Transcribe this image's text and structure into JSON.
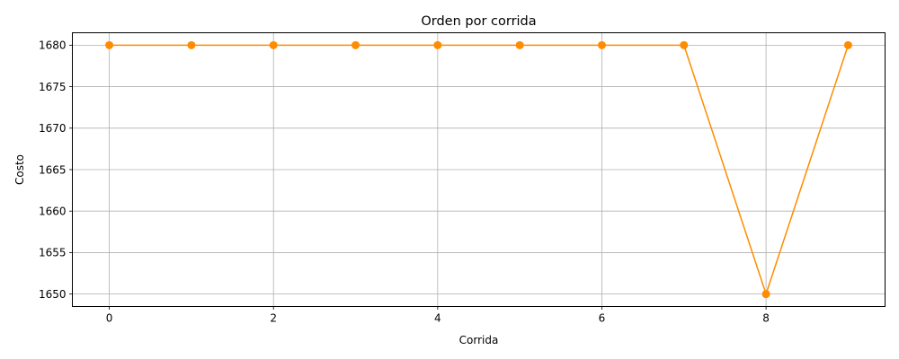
{
  "chart_data": {
    "type": "line",
    "title": "Orden por corrida",
    "xlabel": "Corrida",
    "ylabel": "Costo",
    "x": [
      0,
      1,
      2,
      3,
      4,
      5,
      6,
      7,
      8,
      9
    ],
    "series": [
      {
        "values": [
          1680,
          1680,
          1680,
          1680,
          1680,
          1680,
          1680,
          1680,
          1650,
          1680
        ]
      }
    ],
    "xlim": [
      -0.45,
      9.45
    ],
    "ylim": [
      1648.5,
      1681.5
    ],
    "xticks": [
      0,
      2,
      4,
      6,
      8
    ],
    "yticks": [
      1650,
      1655,
      1660,
      1665,
      1670,
      1675,
      1680
    ],
    "grid": true,
    "line_color": "#ff8c00",
    "marker": "circle"
  }
}
